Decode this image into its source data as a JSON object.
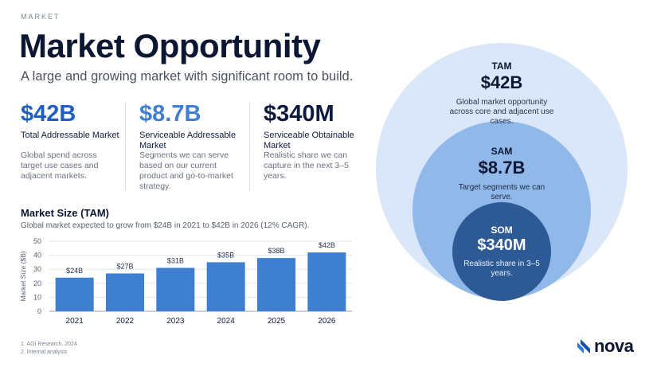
{
  "eyebrow": "MARKET",
  "title": "Market Opportunity",
  "subtitle": "A large and growing market with significant room to build.",
  "metrics": [
    {
      "value": "$42B",
      "label": "Total Addressable Market",
      "desc": "Global spend across target use cases and adjacent markets."
    },
    {
      "value": "$8.7B",
      "label": "Serviceable Addressable Market",
      "desc": "Segments we can serve based on our current product and go-to-market strategy."
    },
    {
      "value": "$340M",
      "label": "Serviceable Obtainable Market",
      "desc": "Realistic share we can capture in the next 3–5 years."
    }
  ],
  "chart_title": "Market Size (TAM)",
  "chart_subtitle": "Global market expected to grow from $24B in 2021 to $42B in 2026 (12% CAGR).",
  "chart_data": {
    "type": "bar",
    "categories": [
      "2021",
      "2022",
      "2023",
      "2024",
      "2025",
      "2026"
    ],
    "values": [
      24,
      27,
      31,
      35,
      38,
      42
    ],
    "data_labels": [
      "$24B",
      "$27B",
      "$31B",
      "$35B",
      "$38B",
      "$42B"
    ],
    "title": "Market Size (TAM)",
    "xlabel": "",
    "ylabel": "Market Size ($B)",
    "ylim": [
      0,
      50
    ],
    "yticks": [
      0,
      10,
      20,
      30,
      40,
      50
    ],
    "grid": true,
    "bar_color": "#3f7fd1"
  },
  "circles": {
    "tam": {
      "heading": "TAM",
      "value": "$42B",
      "desc": "Global market opportunity across core and adjacent use cases."
    },
    "sam": {
      "heading": "SAM",
      "value": "$8.7B",
      "desc": "Target segments we can serve."
    },
    "som": {
      "heading": "SOM",
      "value": "$340M",
      "desc": "Realistic share in 3–5 years."
    }
  },
  "footnotes": [
    "1. AGI Research, 2024",
    "2. Internal analysis"
  ],
  "logo_text": "nova",
  "colors": {
    "tam_fill": "#d9e7f8",
    "sam_fill": "#90b8e8",
    "som_fill": "#2d5a95",
    "accent": "#1f5fbf"
  }
}
